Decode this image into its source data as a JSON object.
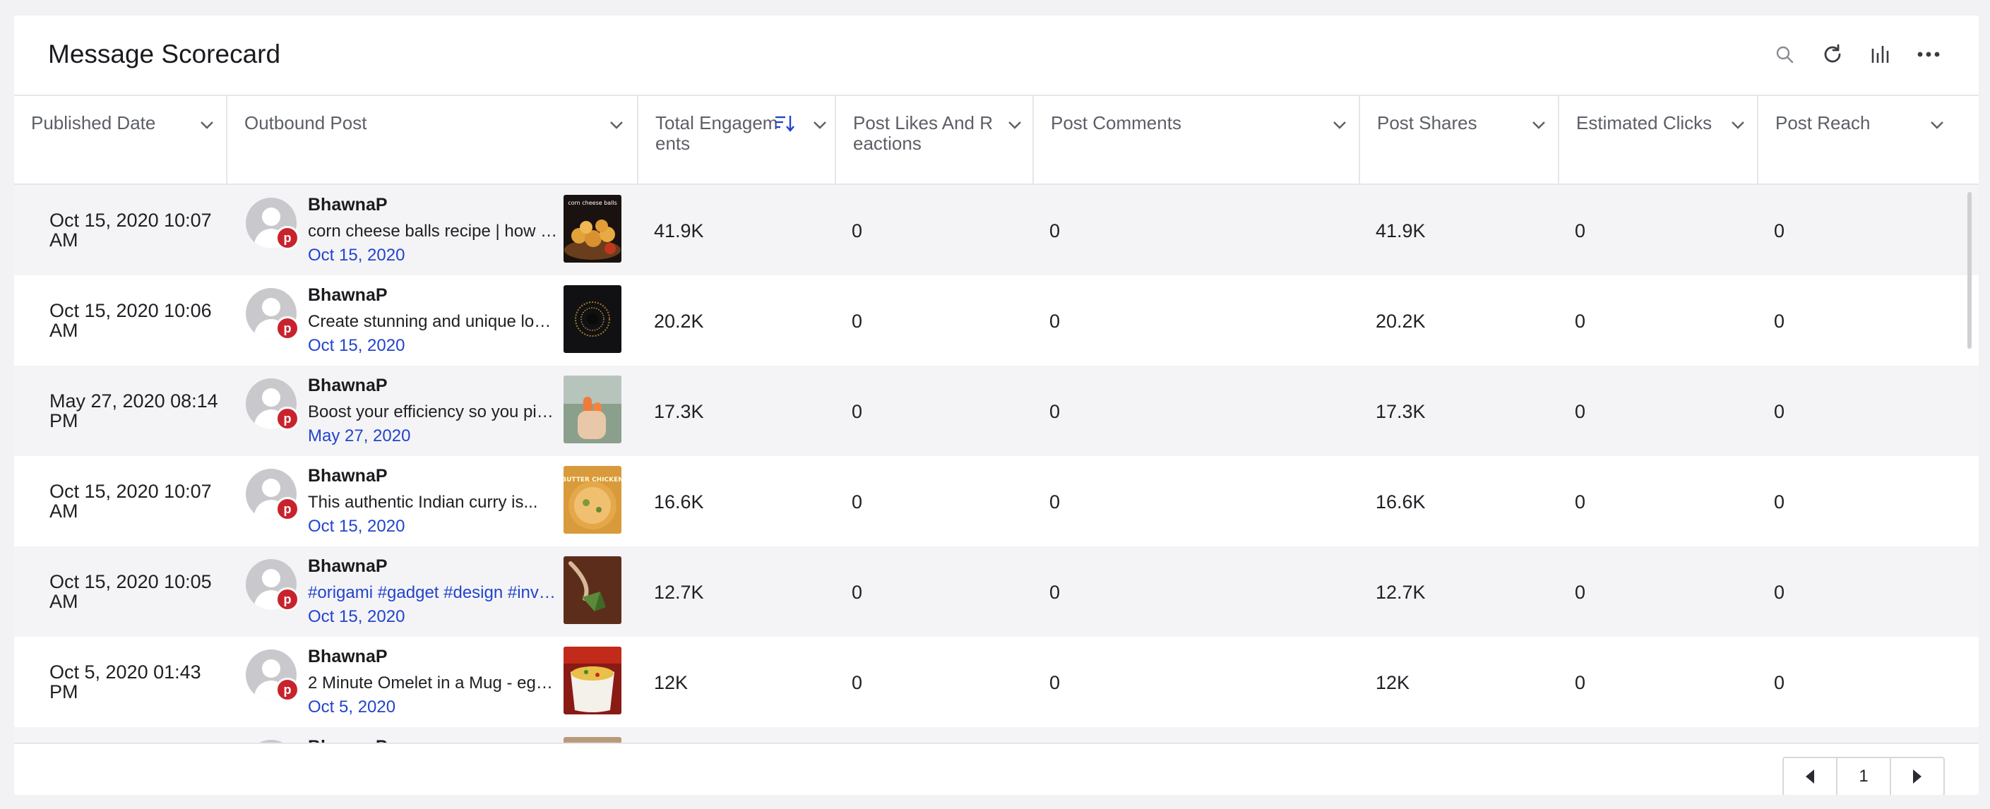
{
  "widget": {
    "title": "Message Scorecard"
  },
  "header_actions": [
    {
      "name": "search-icon"
    },
    {
      "name": "refresh-icon"
    },
    {
      "name": "chart-icon"
    },
    {
      "name": "more-icon"
    }
  ],
  "columns": [
    {
      "key": "published_date",
      "label": "Published Date"
    },
    {
      "key": "outbound_post",
      "label": "Outbound Post"
    },
    {
      "key": "total_engagements",
      "label": "Total Engagements",
      "sorted": "desc"
    },
    {
      "key": "post_likes",
      "label": "Post Likes And Reactions"
    },
    {
      "key": "post_comments",
      "label": "Post Comments"
    },
    {
      "key": "post_shares",
      "label": "Post Shares"
    },
    {
      "key": "estimated_clicks",
      "label": "Estimated Clicks"
    },
    {
      "key": "post_reach",
      "label": "Post Reach"
    }
  ],
  "rows": [
    {
      "published_date": "Oct 15, 2020 10:07 AM",
      "author": "BhawnaP",
      "post_text": "corn cheese balls recipe | how t...",
      "post_date": "Oct 15, 2020",
      "total_engagements": "41.9K",
      "post_likes": "0",
      "post_comments": "0",
      "post_shares": "41.9K",
      "estimated_clicks": "0",
      "post_reach": "0",
      "thumb_label": "corn cheese balls"
    },
    {
      "published_date": "Oct 15, 2020 10:06 AM",
      "author": "BhawnaP",
      "post_text": "Create stunning and unique logo...",
      "post_date": "Oct 15, 2020",
      "total_engagements": "20.2K",
      "post_likes": "0",
      "post_comments": "0",
      "post_shares": "20.2K",
      "estimated_clicks": "0",
      "post_reach": "0"
    },
    {
      "published_date": "May 27, 2020 08:14 PM",
      "author": "BhawnaP",
      "post_text": "Boost your efficiency so you pic...",
      "post_date": "May 27, 2020",
      "total_engagements": "17.3K",
      "post_likes": "0",
      "post_comments": "0",
      "post_shares": "17.3K",
      "estimated_clicks": "0",
      "post_reach": "0"
    },
    {
      "published_date": "Oct 15, 2020 10:07 AM",
      "author": "BhawnaP",
      "post_text": "This authentic Indian curry is...",
      "post_date": "Oct 15, 2020",
      "total_engagements": "16.6K",
      "post_likes": "0",
      "post_comments": "0",
      "post_shares": "16.6K",
      "estimated_clicks": "0",
      "post_reach": "0",
      "thumb_label": "BUTTER CHICKEN"
    },
    {
      "published_date": "Oct 15, 2020 10:05 AM",
      "author": "BhawnaP",
      "post_text": "#origami #gadget #design #inve...",
      "post_text_is_tags": true,
      "post_date": "Oct 15, 2020",
      "total_engagements": "12.7K",
      "post_likes": "0",
      "post_comments": "0",
      "post_shares": "12.7K",
      "estimated_clicks": "0",
      "post_reach": "0"
    },
    {
      "published_date": "Oct 5, 2020 01:43 PM",
      "author": "BhawnaP",
      "post_text": "2 Minute Omelet in a Mug - egg...",
      "post_date": "Oct 5, 2020",
      "total_engagements": "12K",
      "post_likes": "0",
      "post_comments": "0",
      "post_shares": "12K",
      "estimated_clicks": "0",
      "post_reach": "0"
    },
    {
      "published_date": "",
      "author": "BhawnaP",
      "post_text": "",
      "post_date": "",
      "total_engagements": "",
      "post_likes": "",
      "post_comments": "",
      "post_shares": "",
      "estimated_clicks": "",
      "post_reach": ""
    }
  ],
  "pagination": {
    "current_page": "1"
  },
  "colors": {
    "accent": "#2244cc",
    "pinterest": "#c8232c",
    "row_alt": "#f4f4f7",
    "border": "#e6e6ea"
  }
}
